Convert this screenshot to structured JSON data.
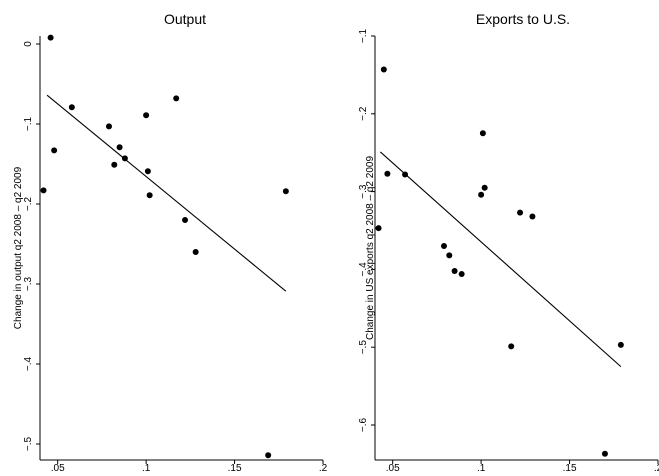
{
  "chart_data": [
    {
      "type": "scatter",
      "title": "Output",
      "xlabel": "",
      "ylabel": "Change in output q2 2008 – q2 2009",
      "xlim": [
        0.04,
        0.2
      ],
      "ylim": [
        -0.52,
        0.01
      ],
      "xticks": [
        0.05,
        0.1,
        0.15,
        0.2
      ],
      "xtick_labels": [
        ".05",
        ".1",
        ".15",
        ".2"
      ],
      "yticks": [
        0,
        -0.1,
        -0.2,
        -0.3,
        -0.4,
        -0.5
      ],
      "ytick_labels": [
        "0",
        "−.1",
        "−.2",
        "−.3",
        "−.4",
        "−.5"
      ],
      "grid": false,
      "points": [
        {
          "x": 0.042,
          "y": -0.183
        },
        {
          "x": 0.046,
          "y": 0.008
        },
        {
          "x": 0.048,
          "y": -0.133
        },
        {
          "x": 0.058,
          "y": -0.079
        },
        {
          "x": 0.079,
          "y": -0.103
        },
        {
          "x": 0.082,
          "y": -0.151
        },
        {
          "x": 0.085,
          "y": -0.129
        },
        {
          "x": 0.088,
          "y": -0.143
        },
        {
          "x": 0.1,
          "y": -0.089
        },
        {
          "x": 0.101,
          "y": -0.159
        },
        {
          "x": 0.102,
          "y": -0.189
        },
        {
          "x": 0.117,
          "y": -0.068
        },
        {
          "x": 0.122,
          "y": -0.22
        },
        {
          "x": 0.128,
          "y": -0.26
        },
        {
          "x": 0.169,
          "y": -0.514
        },
        {
          "x": 0.179,
          "y": -0.184
        }
      ],
      "fit_line": [
        {
          "x": 0.044,
          "y": -0.064
        },
        {
          "x": 0.179,
          "y": -0.309
        }
      ]
    },
    {
      "type": "scatter",
      "title": "Exports to U.S.",
      "xlabel": "",
      "ylabel": "Change in US exports q2 2008 – q2 2009",
      "xlim": [
        0.04,
        0.2
      ],
      "ylim": [
        -0.645,
        -0.1
      ],
      "xticks": [
        0.05,
        0.1,
        0.15,
        0.2
      ],
      "xtick_labels": [
        ".05",
        ".1",
        ".15",
        ".2"
      ],
      "yticks": [
        -0.1,
        -0.2,
        -0.3,
        -0.4,
        -0.5,
        -0.6
      ],
      "ytick_labels": [
        "−.1",
        "−.2",
        "−.3",
        "−.4",
        "−.5",
        "−.6"
      ],
      "grid": false,
      "points": [
        {
          "x": 0.042,
          "y": -0.347
        },
        {
          "x": 0.045,
          "y": -0.143
        },
        {
          "x": 0.047,
          "y": -0.277
        },
        {
          "x": 0.057,
          "y": -0.278
        },
        {
          "x": 0.079,
          "y": -0.37
        },
        {
          "x": 0.082,
          "y": -0.382
        },
        {
          "x": 0.085,
          "y": -0.402
        },
        {
          "x": 0.089,
          "y": -0.406
        },
        {
          "x": 0.1,
          "y": -0.304
        },
        {
          "x": 0.101,
          "y": -0.225
        },
        {
          "x": 0.102,
          "y": -0.295
        },
        {
          "x": 0.117,
          "y": -0.499
        },
        {
          "x": 0.122,
          "y": -0.327
        },
        {
          "x": 0.129,
          "y": -0.332
        },
        {
          "x": 0.17,
          "y": -0.637
        },
        {
          "x": 0.179,
          "y": -0.497
        }
      ],
      "fit_line": [
        {
          "x": 0.043,
          "y": -0.249
        },
        {
          "x": 0.179,
          "y": -0.525
        }
      ]
    }
  ]
}
